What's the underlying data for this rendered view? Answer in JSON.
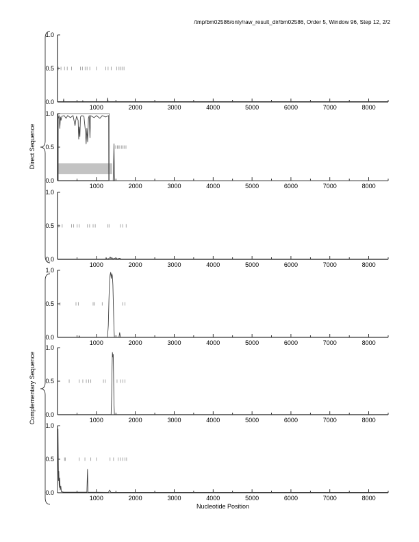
{
  "title": "/tmp/bm02586/only/raw_result_dir/bm02586, Order 5, Window 96, Step 12, 2/2",
  "xlabel": "Nucleotide Position",
  "group_labels": {
    "direct": "Direct Sequence",
    "complementary": "Complementary Sequence"
  },
  "colors": {
    "axis": "#000000",
    "curve": "#3f3f3f",
    "tick_marks": "#9c9c9c",
    "gene_bar": "#c3c3c3",
    "gene_box": "#6b6b6b",
    "brace": "#333333",
    "text": "#000000"
  },
  "chart_data": [
    {
      "type": "line",
      "name": "direct-frame-1",
      "group": "direct",
      "xlim": [
        0,
        8500
      ],
      "ylim": [
        0,
        1
      ],
      "xticks_major": [
        1000,
        2000,
        3000,
        4000,
        5000,
        6000,
        7000,
        8000
      ],
      "xtick_labels": [
        "1000",
        "2000",
        "3000",
        "4000",
        "5000",
        "6000",
        "7000",
        "8000"
      ],
      "xticks_minor": [
        500,
        1500,
        2500,
        3500,
        4500,
        5500,
        6500,
        7500,
        8500
      ],
      "yticks": [
        0,
        0.5,
        1
      ],
      "ytick_labels": [
        "0.0",
        "0.5",
        "1.0"
      ],
      "marks_y": 0.5,
      "marks_x": [
        20,
        90,
        180,
        250,
        360,
        590,
        640,
        710,
        760,
        830,
        1000,
        1240,
        1300,
        1380,
        1520,
        1580,
        1620,
        1660,
        1710
      ],
      "curve": [
        [
          0,
          0.005
        ],
        [
          150,
          0.005
        ],
        [
          158,
          0.045
        ],
        [
          166,
          0.005
        ],
        [
          640,
          0.005
        ],
        [
          650,
          0.02
        ],
        [
          660,
          0.005
        ],
        [
          1280,
          0.005
        ],
        [
          1290,
          0.06
        ],
        [
          1300,
          0.005
        ],
        [
          8500,
          0.005
        ]
      ]
    },
    {
      "type": "line",
      "name": "direct-frame-2",
      "group": "direct",
      "xlim": [
        0,
        8500
      ],
      "ylim": [
        0,
        1
      ],
      "xticks_major": [
        1000,
        2000,
        3000,
        4000,
        5000,
        6000,
        7000,
        8000
      ],
      "xtick_labels": [
        "1000",
        "2000",
        "3000",
        "4000",
        "5000",
        "6000",
        "7000",
        "8000"
      ],
      "xticks_minor": [
        500,
        1500,
        2500,
        3500,
        4500,
        5500,
        6500,
        7500,
        8500
      ],
      "yticks": [
        0,
        0.5,
        1
      ],
      "ytick_labels": [
        "0.0",
        "0.5",
        "1.0"
      ],
      "marks_y": 0.5,
      "marks_x": [
        1335,
        1455,
        1495,
        1540,
        1570,
        1600,
        1650,
        1685,
        1720,
        1760
      ],
      "gene_box": {
        "x0": 15,
        "x1": 1330,
        "y0": 0,
        "y1": 1
      },
      "gene_bar": {
        "x0": 5,
        "x1": 1405,
        "y0": 0.1,
        "y1": 0.26
      },
      "curve": [
        [
          15,
          0
        ],
        [
          17,
          0.92
        ],
        [
          40,
          0.97
        ],
        [
          60,
          0.78
        ],
        [
          75,
          0.95
        ],
        [
          90,
          0.9
        ],
        [
          110,
          0.96
        ],
        [
          170,
          0.97
        ],
        [
          220,
          0.93
        ],
        [
          260,
          0.97
        ],
        [
          330,
          0.94
        ],
        [
          400,
          0.97
        ],
        [
          450,
          0.82
        ],
        [
          470,
          0.9
        ],
        [
          490,
          0.96
        ],
        [
          530,
          0.9
        ],
        [
          545,
          0.62
        ],
        [
          560,
          0.8
        ],
        [
          575,
          0.66
        ],
        [
          590,
          0.95
        ],
        [
          620,
          0.97
        ],
        [
          680,
          0.96
        ],
        [
          720,
          0.72
        ],
        [
          735,
          0.55
        ],
        [
          755,
          0.78
        ],
        [
          775,
          0.58
        ],
        [
          795,
          0.93
        ],
        [
          815,
          0.97
        ],
        [
          835,
          0.64
        ],
        [
          850,
          0.97
        ],
        [
          940,
          0.94
        ],
        [
          1000,
          0.97
        ],
        [
          1090,
          0.93
        ],
        [
          1150,
          0.97
        ],
        [
          1240,
          0.95
        ],
        [
          1315,
          0.97
        ],
        [
          1318,
          0
        ],
        [
          1430,
          0
        ],
        [
          1445,
          0.35
        ],
        [
          1452,
          0.55
        ],
        [
          1458,
          0.3
        ],
        [
          1468,
          0
        ],
        [
          8500,
          0
        ]
      ]
    },
    {
      "type": "line",
      "name": "direct-frame-3",
      "group": "direct",
      "xlim": [
        0,
        8500
      ],
      "ylim": [
        0,
        1
      ],
      "xticks_major": [
        1000,
        2000,
        3000,
        4000,
        5000,
        6000,
        7000,
        8000
      ],
      "xtick_labels": [
        "1000",
        "2000",
        "3000",
        "4000",
        "5000",
        "6000",
        "7000",
        "8000"
      ],
      "xticks_minor": [
        500,
        1500,
        2500,
        3500,
        4500,
        5500,
        6500,
        7500,
        8500
      ],
      "yticks": [
        0,
        0.5,
        1
      ],
      "ytick_labels": [
        "0.0",
        "0.5",
        "1.0"
      ],
      "marks_y": 0.5,
      "marks_x": [
        35,
        120,
        360,
        415,
        505,
        560,
        770,
        825,
        915,
        970,
        1295,
        1325,
        1615,
        1675,
        1765
      ],
      "curve": [
        [
          0,
          0.005
        ],
        [
          1240,
          0.005
        ],
        [
          1250,
          0.028
        ],
        [
          1262,
          0.005
        ],
        [
          1330,
          0.012
        ],
        [
          1355,
          0.035
        ],
        [
          1375,
          0.01
        ],
        [
          1395,
          0.028
        ],
        [
          1420,
          0.006
        ],
        [
          1490,
          0.02
        ],
        [
          1540,
          0.006
        ],
        [
          1595,
          0.016
        ],
        [
          1640,
          0.005
        ],
        [
          8500,
          0.005
        ]
      ]
    },
    {
      "type": "line",
      "name": "complementary-frame-1",
      "group": "complementary",
      "xlim": [
        0,
        8500
      ],
      "ylim": [
        0,
        1
      ],
      "xticks_major": [
        1000,
        2000,
        3000,
        4000,
        5000,
        6000,
        7000,
        8000
      ],
      "xtick_labels": [
        "1000",
        "2000",
        "3000",
        "4000",
        "5000",
        "6000",
        "7000",
        "8000"
      ],
      "xticks_minor": [
        500,
        1500,
        2500,
        3500,
        4500,
        5500,
        6500,
        7500,
        8500
      ],
      "yticks": [
        0,
        0.5,
        1
      ],
      "ytick_labels": [
        "0.0",
        "0.5",
        "1.0"
      ],
      "marks_y": 0.5,
      "marks_x": [
        65,
        475,
        535,
        915,
        955,
        1150,
        1675,
        1735
      ],
      "curve": [
        [
          0,
          0.003
        ],
        [
          548,
          0.003
        ],
        [
          558,
          0.025
        ],
        [
          568,
          0.003
        ],
        [
          1285,
          0.003
        ],
        [
          1305,
          0.18
        ],
        [
          1322,
          0.55
        ],
        [
          1338,
          0.84
        ],
        [
          1352,
          0.93
        ],
        [
          1368,
          0.97
        ],
        [
          1382,
          0.88
        ],
        [
          1398,
          0.95
        ],
        [
          1412,
          0.91
        ],
        [
          1424,
          0.78
        ],
        [
          1438,
          0.45
        ],
        [
          1452,
          0.12
        ],
        [
          1462,
          0.003
        ],
        [
          1580,
          0.003
        ],
        [
          1598,
          0.07
        ],
        [
          1618,
          0.003
        ],
        [
          8500,
          0.003
        ]
      ]
    },
    {
      "type": "line",
      "name": "complementary-frame-2",
      "group": "complementary",
      "xlim": [
        0,
        8500
      ],
      "ylim": [
        0,
        1
      ],
      "xticks_major": [
        1000,
        2000,
        3000,
        4000,
        5000,
        6000,
        7000,
        8000
      ],
      "xtick_labels": [
        "1000",
        "2000",
        "3000",
        "4000",
        "5000",
        "6000",
        "7000",
        "8000"
      ],
      "xticks_minor": [
        500,
        1500,
        2500,
        3500,
        4500,
        5500,
        6500,
        7500,
        8500
      ],
      "yticks": [
        0,
        0.5,
        1
      ],
      "ytick_labels": [
        "0.0",
        "0.5",
        "1.0"
      ],
      "marks_y": 0.5,
      "marks_x": [
        300,
        560,
        650,
        740,
        800,
        855,
        1180,
        1230,
        1530,
        1620,
        1680,
        1735
      ],
      "curve": [
        [
          0,
          0.003
        ],
        [
          1378,
          0.003
        ],
        [
          1392,
          0.28
        ],
        [
          1402,
          0.72
        ],
        [
          1412,
          0.93
        ],
        [
          1422,
          0.86
        ],
        [
          1432,
          0.9
        ],
        [
          1442,
          0.58
        ],
        [
          1452,
          0.16
        ],
        [
          1462,
          0.003
        ],
        [
          8500,
          0.003
        ]
      ]
    },
    {
      "type": "line",
      "name": "complementary-frame-3",
      "group": "complementary",
      "xlim": [
        0,
        8500
      ],
      "ylim": [
        0,
        1
      ],
      "xticks_major": [
        1000,
        2000,
        3000,
        4000,
        5000,
        6000,
        7000,
        8000
      ],
      "xtick_labels": [
        "1000",
        "2000",
        "3000",
        "4000",
        "5000",
        "6000",
        "7000",
        "8000"
      ],
      "xticks_minor": [
        500,
        1500,
        2500,
        3500,
        4500,
        5500,
        6500,
        7500,
        8500
      ],
      "yticks": [
        0,
        0.5,
        1
      ],
      "ytick_labels": [
        "0.0",
        "0.5",
        "1.0"
      ],
      "marks_y": 0.5,
      "marks_x": [
        180,
        200,
        560,
        705,
        855,
        1000,
        1350,
        1440,
        1560,
        1615,
        1675,
        1735,
        1775
      ],
      "curve": [
        [
          0,
          0.01
        ],
        [
          6,
          0.35
        ],
        [
          12,
          0.95
        ],
        [
          20,
          0.55
        ],
        [
          26,
          0.18
        ],
        [
          34,
          0.32
        ],
        [
          44,
          0.08
        ],
        [
          56,
          0.22
        ],
        [
          70,
          0.04
        ],
        [
          85,
          0.1
        ],
        [
          100,
          0.015
        ],
        [
          160,
          0.008
        ],
        [
          755,
          0.008
        ],
        [
          770,
          0.35
        ],
        [
          785,
          0.008
        ],
        [
          1310,
          0.006
        ],
        [
          1340,
          0.04
        ],
        [
          1372,
          0.006
        ],
        [
          8500,
          0.006
        ]
      ]
    }
  ]
}
